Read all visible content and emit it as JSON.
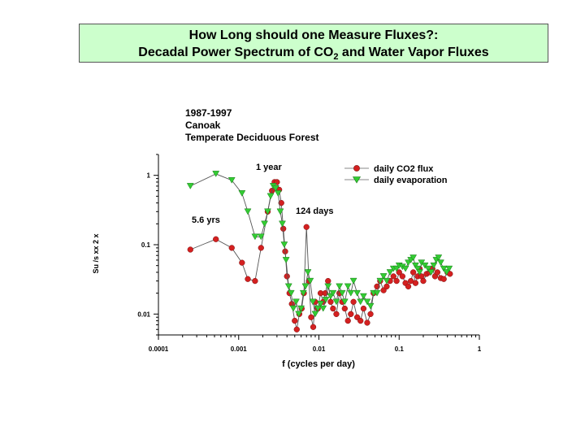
{
  "slide": {
    "title_line1": "How Long should one Measure Fluxes?:",
    "title_line2_prefix": "Decadal Power Spectrum of CO",
    "title_line2_sub": "2",
    "title_line2_suffix": " and Water Vapor Fluxes"
  },
  "chart_data": {
    "type": "scatter",
    "annotation_block": [
      "1987-1997",
      "Canoak",
      "Temperate Deciduous Forest"
    ],
    "annotations": [
      "1 year",
      "5.6 yrs",
      "124 days"
    ],
    "xlabel": "f (cycles per day)",
    "ylabel": "Su /s xx 2 x",
    "x_scale": "log",
    "y_scale": "log",
    "xlim": [
      0.0001,
      1
    ],
    "ylim": [
      0.005,
      2
    ],
    "x_ticks": [
      "0.0001",
      "0.001",
      "0.01",
      "0.1",
      "1"
    ],
    "y_ticks": [
      "0.01",
      "0.1",
      "1"
    ],
    "legend_position": "top-right",
    "grid": false,
    "series": [
      {
        "name": "daily CO2 flux",
        "color": "#d42020",
        "marker": "circle",
        "points": [
          [
            0.00025,
            0.085
          ],
          [
            0.00052,
            0.12
          ],
          [
            0.00082,
            0.09
          ],
          [
            0.0011,
            0.055
          ],
          [
            0.0013,
            0.032
          ],
          [
            0.0016,
            0.03
          ],
          [
            0.0019,
            0.09
          ],
          [
            0.0023,
            0.3
          ],
          [
            0.0026,
            0.6
          ],
          [
            0.0028,
            0.8
          ],
          [
            0.003,
            0.8
          ],
          [
            0.0032,
            0.62
          ],
          [
            0.0034,
            0.4
          ],
          [
            0.0036,
            0.17
          ],
          [
            0.0038,
            0.08
          ],
          [
            0.004,
            0.035
          ],
          [
            0.0043,
            0.02
          ],
          [
            0.0046,
            0.014
          ],
          [
            0.005,
            0.008
          ],
          [
            0.0053,
            0.006
          ],
          [
            0.0057,
            0.01
          ],
          [
            0.0061,
            0.012
          ],
          [
            0.0065,
            0.02
          ],
          [
            0.007,
            0.18
          ],
          [
            0.0075,
            0.03
          ],
          [
            0.008,
            0.009
          ],
          [
            0.0085,
            0.0065
          ],
          [
            0.009,
            0.015
          ],
          [
            0.0097,
            0.012
          ],
          [
            0.0105,
            0.02
          ],
          [
            0.0113,
            0.015
          ],
          [
            0.012,
            0.02
          ],
          [
            0.013,
            0.03
          ],
          [
            0.014,
            0.015
          ],
          [
            0.015,
            0.012
          ],
          [
            0.0165,
            0.01
          ],
          [
            0.018,
            0.02
          ],
          [
            0.0195,
            0.015
          ],
          [
            0.021,
            0.012
          ],
          [
            0.023,
            0.008
          ],
          [
            0.025,
            0.01
          ],
          [
            0.027,
            0.015
          ],
          [
            0.03,
            0.009
          ],
          [
            0.033,
            0.008
          ],
          [
            0.036,
            0.012
          ],
          [
            0.04,
            0.0075
          ],
          [
            0.044,
            0.01
          ],
          [
            0.048,
            0.02
          ],
          [
            0.053,
            0.025
          ],
          [
            0.058,
            0.03
          ],
          [
            0.064,
            0.022
          ],
          [
            0.07,
            0.025
          ],
          [
            0.077,
            0.03
          ],
          [
            0.085,
            0.035
          ],
          [
            0.093,
            0.03
          ],
          [
            0.1,
            0.04
          ],
          [
            0.11,
            0.035
          ],
          [
            0.12,
            0.028
          ],
          [
            0.13,
            0.025
          ],
          [
            0.14,
            0.03
          ],
          [
            0.15,
            0.04
          ],
          [
            0.16,
            0.028
          ],
          [
            0.17,
            0.035
          ],
          [
            0.18,
            0.045
          ],
          [
            0.19,
            0.035
          ],
          [
            0.2,
            0.03
          ],
          [
            0.22,
            0.038
          ],
          [
            0.24,
            0.04
          ],
          [
            0.26,
            0.045
          ],
          [
            0.28,
            0.035
          ],
          [
            0.3,
            0.04
          ],
          [
            0.33,
            0.033
          ],
          [
            0.36,
            0.032
          ],
          [
            0.4,
            0.04
          ],
          [
            0.43,
            0.038
          ]
        ]
      },
      {
        "name": "daily evaporation",
        "color": "#33cc33",
        "marker": "triangle-down",
        "points": [
          [
            0.00025,
            0.7
          ],
          [
            0.00052,
            1.05
          ],
          [
            0.00082,
            0.85
          ],
          [
            0.0011,
            0.55
          ],
          [
            0.0013,
            0.3
          ],
          [
            0.0016,
            0.13
          ],
          [
            0.0019,
            0.13
          ],
          [
            0.0021,
            0.2
          ],
          [
            0.0023,
            0.3
          ],
          [
            0.0025,
            0.5
          ],
          [
            0.0027,
            0.7
          ],
          [
            0.0029,
            0.65
          ],
          [
            0.0031,
            0.55
          ],
          [
            0.0033,
            0.3
          ],
          [
            0.0035,
            0.2
          ],
          [
            0.0037,
            0.1
          ],
          [
            0.0039,
            0.06
          ],
          [
            0.0042,
            0.025
          ],
          [
            0.0045,
            0.02
          ],
          [
            0.0048,
            0.012
          ],
          [
            0.0052,
            0.015
          ],
          [
            0.0056,
            0.01
          ],
          [
            0.006,
            0.012
          ],
          [
            0.0064,
            0.02
          ],
          [
            0.0068,
            0.025
          ],
          [
            0.0073,
            0.04
          ],
          [
            0.0078,
            0.03
          ],
          [
            0.0084,
            0.015
          ],
          [
            0.009,
            0.01
          ],
          [
            0.0097,
            0.012
          ],
          [
            0.0105,
            0.014
          ],
          [
            0.0113,
            0.012
          ],
          [
            0.0122,
            0.016
          ],
          [
            0.013,
            0.025
          ],
          [
            0.014,
            0.018
          ],
          [
            0.015,
            0.02
          ],
          [
            0.0165,
            0.015
          ],
          [
            0.018,
            0.025
          ],
          [
            0.0195,
            0.02
          ],
          [
            0.021,
            0.015
          ],
          [
            0.023,
            0.025
          ],
          [
            0.025,
            0.02
          ],
          [
            0.027,
            0.03
          ],
          [
            0.03,
            0.02
          ],
          [
            0.033,
            0.015
          ],
          [
            0.036,
            0.018
          ],
          [
            0.04,
            0.015
          ],
          [
            0.044,
            0.013
          ],
          [
            0.048,
            0.02
          ],
          [
            0.053,
            0.02
          ],
          [
            0.058,
            0.03
          ],
          [
            0.064,
            0.035
          ],
          [
            0.07,
            0.03
          ],
          [
            0.077,
            0.04
          ],
          [
            0.085,
            0.045
          ],
          [
            0.093,
            0.045
          ],
          [
            0.1,
            0.05
          ],
          [
            0.11,
            0.048
          ],
          [
            0.12,
            0.045
          ],
          [
            0.13,
            0.055
          ],
          [
            0.14,
            0.06
          ],
          [
            0.15,
            0.065
          ],
          [
            0.16,
            0.05
          ],
          [
            0.17,
            0.045
          ],
          [
            0.18,
            0.04
          ],
          [
            0.19,
            0.055
          ],
          [
            0.21,
            0.05
          ],
          [
            0.23,
            0.045
          ],
          [
            0.25,
            0.04
          ],
          [
            0.27,
            0.05
          ],
          [
            0.29,
            0.06
          ],
          [
            0.31,
            0.065
          ],
          [
            0.33,
            0.055
          ],
          [
            0.36,
            0.045
          ],
          [
            0.39,
            0.04
          ],
          [
            0.42,
            0.045
          ]
        ]
      }
    ]
  }
}
